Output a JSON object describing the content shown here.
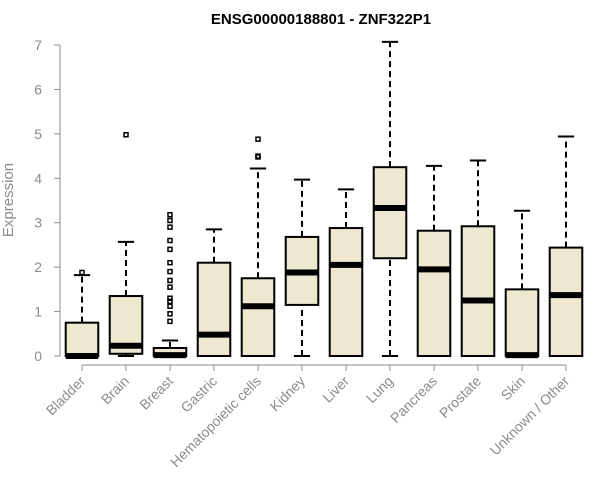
{
  "chart_data": {
    "type": "boxplot",
    "title": "ENSG00000188801 - ZNF322P1",
    "xlabel": "",
    "ylabel": "Expression",
    "ylim": [
      0,
      7
    ],
    "yticks": [
      0,
      1,
      2,
      3,
      4,
      5,
      6,
      7
    ],
    "grid": false,
    "colors": {
      "box_fill": "#efe8d0",
      "box_stroke": "#000000",
      "axis": "#8c8c8c",
      "text": "#8c8c8c"
    },
    "categories": [
      "Bladder",
      "Brain",
      "Breast",
      "Gastric",
      "Hematopoietic cells",
      "Kidney",
      "Liver",
      "Lung",
      "Pancreas",
      "Prostate",
      "Skin",
      "Unknown / Other"
    ],
    "boxes": [
      {
        "whisker_low": 0,
        "q1": 0,
        "median": 0.0,
        "q3": 0.75,
        "whisker_high": 1.82,
        "outliers": [
          1.88
        ]
      },
      {
        "whisker_low": 0,
        "q1": 0.05,
        "median": 0.23,
        "q3": 1.35,
        "whisker_high": 2.57,
        "outliers": [
          4.98
        ]
      },
      {
        "whisker_low": 0,
        "q1": 0,
        "median": 0.02,
        "q3": 0.18,
        "whisker_high": 0.35,
        "outliers": [
          0.78,
          0.95,
          1.12,
          1.23,
          1.3,
          1.55,
          1.7,
          1.9,
          2.1,
          2.4,
          2.6,
          2.9,
          3.05,
          3.18
        ]
      },
      {
        "whisker_low": 0,
        "q1": 0,
        "median": 0.48,
        "q3": 2.1,
        "whisker_high": 2.85,
        "outliers": []
      },
      {
        "whisker_low": 0,
        "q1": 0,
        "median": 1.12,
        "q3": 1.75,
        "whisker_high": 4.22,
        "outliers": [
          4.48,
          4.5,
          4.88
        ]
      },
      {
        "whisker_low": 0,
        "q1": 1.15,
        "median": 1.88,
        "q3": 2.68,
        "whisker_high": 3.97,
        "outliers": []
      },
      {
        "whisker_low": 0,
        "q1": 0,
        "median": 2.05,
        "q3": 2.88,
        "whisker_high": 3.75,
        "outliers": []
      },
      {
        "whisker_low": 0,
        "q1": 2.2,
        "median": 3.33,
        "q3": 4.25,
        "whisker_high": 7.07,
        "outliers": []
      },
      {
        "whisker_low": 0,
        "q1": 0,
        "median": 1.95,
        "q3": 2.82,
        "whisker_high": 4.28,
        "outliers": []
      },
      {
        "whisker_low": 0,
        "q1": 0,
        "median": 1.25,
        "q3": 2.92,
        "whisker_high": 4.4,
        "outliers": []
      },
      {
        "whisker_low": 0,
        "q1": 0,
        "median": 0.02,
        "q3": 1.5,
        "whisker_high": 3.27,
        "outliers": []
      },
      {
        "whisker_low": 0,
        "q1": 0,
        "median": 1.37,
        "q3": 2.44,
        "whisker_high": 4.94,
        "outliers": []
      }
    ]
  }
}
